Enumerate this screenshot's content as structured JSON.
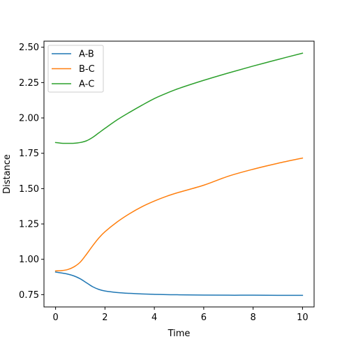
{
  "chart_data": {
    "type": "line",
    "title": "",
    "xlabel": "Time",
    "ylabel": "Distance",
    "xlim": [
      -0.47,
      10.47
    ],
    "ylim": [
      0.663,
      2.543
    ],
    "xticks": [
      0,
      2,
      4,
      6,
      8,
      10
    ],
    "yticks": [
      0.75,
      1.0,
      1.25,
      1.5,
      1.75,
      2.0,
      2.25,
      2.5
    ],
    "ytick_labels": [
      "0.75",
      "1.00",
      "1.25",
      "1.50",
      "1.75",
      "2.00",
      "2.25",
      "2.50"
    ],
    "grid": false,
    "legend_position": "upper-left",
    "x": [
      0,
      0.25,
      0.5,
      0.75,
      1.0,
      1.25,
      1.5,
      1.75,
      2.0,
      2.5,
      3.0,
      3.5,
      4.0,
      4.5,
      5.0,
      6.0,
      7.0,
      8.0,
      9.0,
      10.0
    ],
    "series": [
      {
        "name": "A-B",
        "color": "#1f77b4",
        "values": [
          0.91,
          0.903,
          0.895,
          0.882,
          0.862,
          0.834,
          0.806,
          0.787,
          0.776,
          0.765,
          0.759,
          0.755,
          0.752,
          0.75,
          0.749,
          0.747,
          0.746,
          0.746,
          0.745,
          0.745
        ]
      },
      {
        "name": "B-C",
        "color": "#ff7f0e",
        "values": [
          0.918,
          0.92,
          0.928,
          0.947,
          0.98,
          1.035,
          1.095,
          1.15,
          1.195,
          1.265,
          1.323,
          1.372,
          1.412,
          1.446,
          1.474,
          1.524,
          1.588,
          1.637,
          1.679,
          1.716
        ]
      },
      {
        "name": "A-C",
        "color": "#2ca02c",
        "values": [
          1.826,
          1.821,
          1.82,
          1.821,
          1.826,
          1.838,
          1.862,
          1.894,
          1.926,
          1.987,
          2.04,
          2.09,
          2.137,
          2.175,
          2.209,
          2.266,
          2.318,
          2.367,
          2.413,
          2.458
        ]
      }
    ]
  }
}
